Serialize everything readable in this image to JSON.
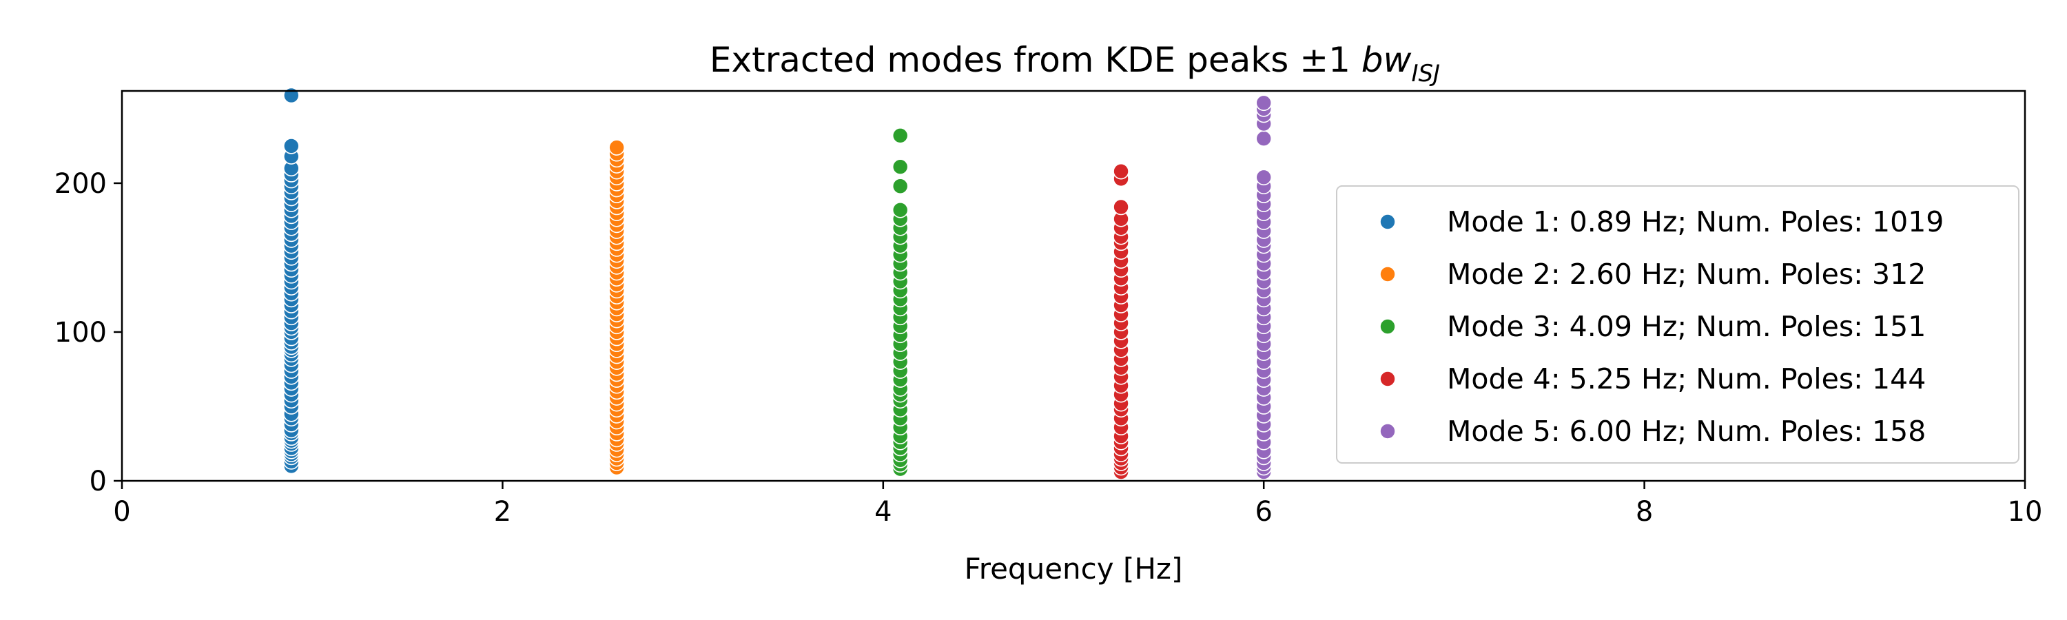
{
  "chart_data": {
    "type": "scatter",
    "title": {
      "main": "Extracted modes from KDE peaks ±1 ",
      "symbol": "bw",
      "subscript": "ISJ"
    },
    "xlabel": "Frequency [Hz]",
    "ylabel": "",
    "xlim": [
      0,
      10
    ],
    "ylim": [
      0,
      262
    ],
    "xticks": [
      0,
      2,
      4,
      6,
      8,
      10
    ],
    "xtick_labels": [
      "0",
      "2",
      "4",
      "6",
      "8",
      "10"
    ],
    "yticks": [
      0,
      100,
      200
    ],
    "ytick_labels": [
      "0",
      "100",
      "200"
    ],
    "grid": false,
    "legend_position": "center-right",
    "series": [
      {
        "name": "Mode 1: 0.89 Hz; Num. Poles: 1019",
        "color": "#1f77b4",
        "x": 0.89,
        "y": [
          10,
          13,
          16,
          18,
          20,
          22,
          25,
          27,
          29,
          32,
          34,
          38,
          42,
          45,
          50,
          54,
          58,
          62,
          66,
          70,
          74,
          78,
          82,
          85,
          88,
          90,
          93,
          96,
          100,
          103,
          106,
          110,
          114,
          118,
          122,
          126,
          130,
          134,
          138,
          142,
          146,
          150,
          154,
          158,
          162,
          166,
          170,
          174,
          178,
          182,
          186,
          190,
          194,
          198,
          202,
          206,
          210,
          218,
          225,
          259
        ]
      },
      {
        "name": "Mode 2: 2.60 Hz; Num. Poles: 312",
        "color": "#ff7f0e",
        "x": 2.6,
        "y": [
          9,
          12,
          15,
          18,
          21,
          25,
          28,
          32,
          36,
          40,
          44,
          48,
          52,
          56,
          60,
          64,
          68,
          72,
          76,
          80,
          84,
          88,
          92,
          96,
          100,
          104,
          108,
          112,
          116,
          120,
          124,
          128,
          132,
          136,
          140,
          144,
          148,
          152,
          156,
          160,
          164,
          168,
          172,
          176,
          180,
          184,
          188,
          192,
          196,
          200,
          204,
          208,
          212,
          216,
          220,
          224
        ]
      },
      {
        "name": "Mode 3: 4.09 Hz; Num. Poles: 151",
        "color": "#2ca02c",
        "x": 4.09,
        "y": [
          8,
          11,
          14,
          18,
          22,
          26,
          30,
          36,
          42,
          48,
          54,
          58,
          62,
          68,
          74,
          80,
          86,
          92,
          98,
          104,
          110,
          116,
          122,
          128,
          134,
          140,
          146,
          152,
          158,
          164,
          170,
          176,
          182,
          198,
          211,
          232
        ]
      },
      {
        "name": "Mode 4: 5.25 Hz; Num. Poles: 144",
        "color": "#d62728",
        "x": 5.25,
        "y": [
          6,
          9,
          12,
          15,
          18,
          22,
          26,
          30,
          36,
          42,
          48,
          52,
          58,
          64,
          70,
          76,
          82,
          88,
          94,
          100,
          106,
          112,
          118,
          124,
          130,
          136,
          142,
          148,
          154,
          160,
          164,
          170,
          176,
          184,
          203,
          208
        ]
      },
      {
        "name": "Mode 5: 6.00 Hz; Num. Poles: 158",
        "color": "#9467bd",
        "x": 6.0,
        "y": [
          6,
          9,
          12,
          16,
          20,
          26,
          32,
          38,
          44,
          50,
          56,
          62,
          68,
          74,
          80,
          86,
          92,
          98,
          104,
          110,
          116,
          122,
          128,
          134,
          140,
          146,
          152,
          158,
          162,
          168,
          174,
          180,
          186,
          192,
          198,
          204,
          230,
          240,
          246,
          250,
          254
        ]
      }
    ]
  }
}
